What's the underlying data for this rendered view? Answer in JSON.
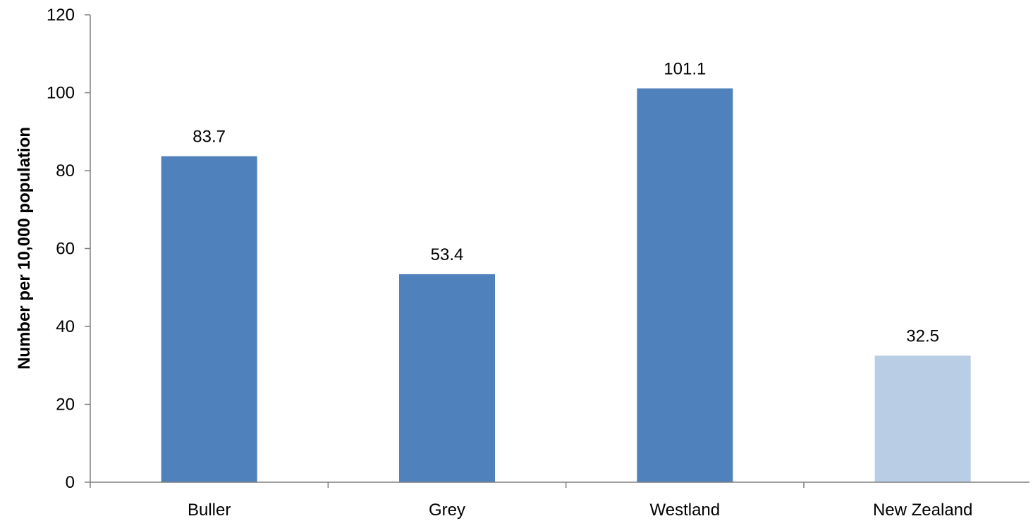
{
  "chart_data": {
    "type": "bar",
    "title": "",
    "xlabel": "",
    "ylabel": "Number per 10,000 population",
    "categories": [
      "Buller",
      "Grey",
      "Westland",
      "New Zealand"
    ],
    "values": [
      83.7,
      53.4,
      101.1,
      32.5
    ],
    "data_labels": [
      "83.7",
      "53.4",
      "101.1",
      "32.5"
    ],
    "bar_colors": [
      "#4f81bd",
      "#4f81bd",
      "#4f81bd",
      "#b9cde5"
    ],
    "ylim": [
      0,
      120
    ],
    "yticks": [
      0,
      20,
      40,
      60,
      80,
      100,
      120
    ],
    "grid": false,
    "legend": "none"
  }
}
